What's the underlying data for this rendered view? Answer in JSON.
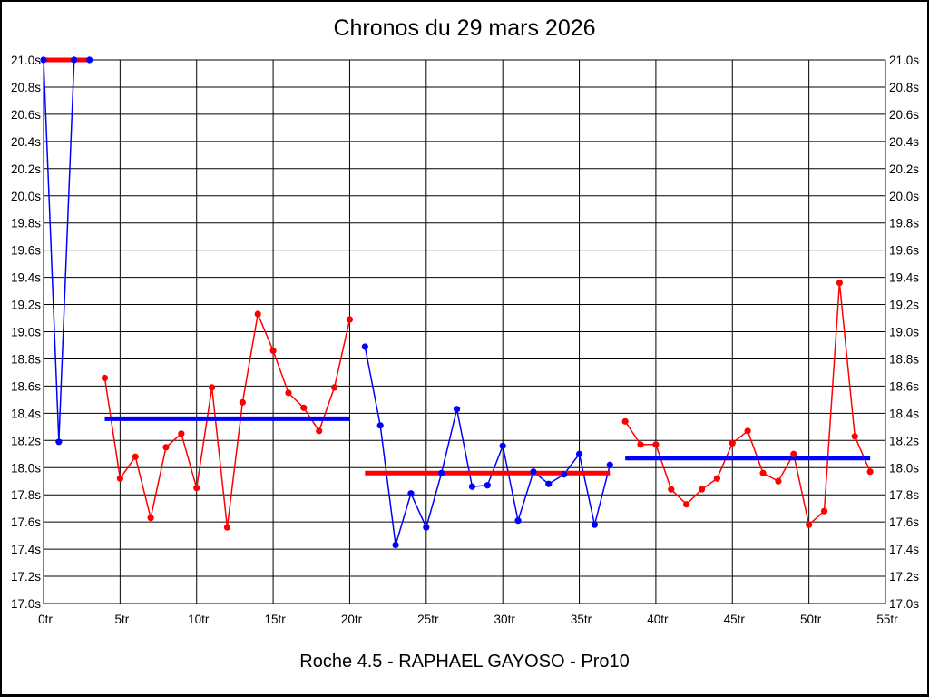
{
  "page": {
    "title": "Chronos du 29 mars 2026",
    "subtitle": "Roche 4.5 - RAPHAEL GAYOSO - Pro10"
  },
  "chart_data": {
    "type": "line",
    "title": "Chronos du 29 mars 2026",
    "subtitle": "Roche 4.5 - RAPHAEL GAYOSO - Pro10",
    "grid": true,
    "legend": "none",
    "x_axis": {
      "min": 0,
      "max": 55,
      "tick_step": 5,
      "unit": "tr"
    },
    "y_axis": {
      "min": 17.0,
      "max": 21.0,
      "tick_step": 0.2,
      "unit": "s",
      "decimals": 1,
      "labels_both_sides": true
    },
    "colors": {
      "red": "#ff0000",
      "blue": "#0000ff",
      "grid": "#000000",
      "text": "#000000",
      "background": "#ffffff"
    },
    "segments": [
      {
        "name": "stint-1",
        "point_color": "blue",
        "avg_color": "red",
        "avg": 21.0,
        "x": [
          0,
          1,
          2,
          3
        ],
        "y": [
          21.0,
          18.19,
          21.0,
          21.0
        ]
      },
      {
        "name": "stint-2",
        "point_color": "red",
        "avg_color": "blue",
        "avg": 18.36,
        "x": [
          4,
          5,
          6,
          7,
          8,
          9,
          10,
          11,
          12,
          13,
          14,
          15,
          16,
          17,
          18,
          19,
          20
        ],
        "y": [
          18.66,
          17.92,
          18.08,
          17.63,
          18.15,
          18.25,
          17.85,
          18.59,
          17.56,
          18.48,
          19.13,
          18.86,
          18.55,
          18.44,
          18.27,
          18.59,
          19.09
        ]
      },
      {
        "name": "stint-3",
        "point_color": "blue",
        "avg_color": "red",
        "avg": 17.96,
        "x": [
          21,
          22,
          23,
          24,
          25,
          26,
          27,
          28,
          29,
          30,
          31,
          32,
          33,
          34,
          35,
          36,
          37
        ],
        "y": [
          18.89,
          18.31,
          17.43,
          17.81,
          17.56,
          17.96,
          18.43,
          17.86,
          17.87,
          18.16,
          17.61,
          17.97,
          17.88,
          17.95,
          18.1,
          17.58,
          18.02
        ]
      },
      {
        "name": "stint-4",
        "point_color": "red",
        "avg_color": "blue",
        "avg": 18.07,
        "x": [
          38,
          39,
          40,
          41,
          42,
          43,
          44,
          45,
          46,
          47,
          48,
          49,
          50,
          51,
          52,
          53,
          54
        ],
        "y": [
          18.34,
          18.17,
          18.17,
          17.84,
          17.73,
          17.84,
          17.92,
          18.18,
          18.27,
          17.96,
          17.9,
          18.1,
          17.58,
          17.68,
          19.36,
          18.23,
          17.97
        ]
      }
    ]
  }
}
